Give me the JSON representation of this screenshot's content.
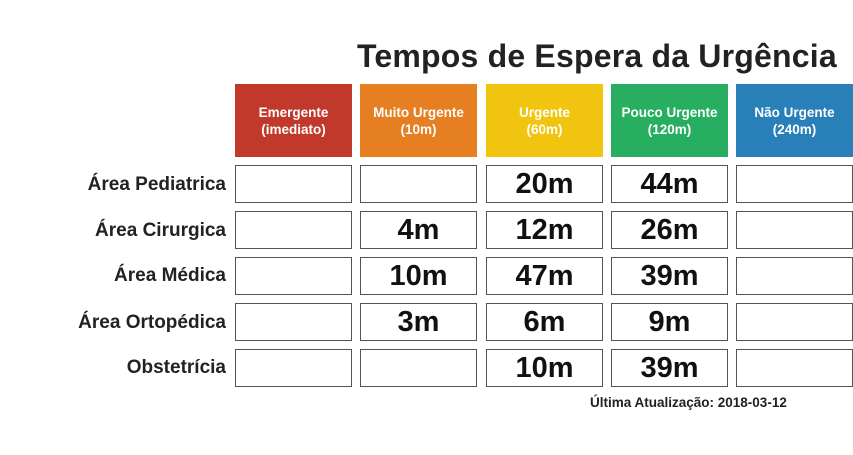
{
  "title": "Tempos de Espera da Urgência",
  "categories": [
    {
      "name": "Emergente",
      "sub": "(imediato)",
      "color": "#c0392b"
    },
    {
      "name": "Muito Urgente",
      "sub": "(10m)",
      "color": "#e67e22"
    },
    {
      "name": "Urgente",
      "sub": "(60m)",
      "color": "#f1c40f"
    },
    {
      "name": "Pouco Urgente",
      "sub": "(120m)",
      "color": "#27ae60"
    },
    {
      "name": "Não Urgente",
      "sub": "(240m)",
      "color": "#2980b9"
    }
  ],
  "rows": [
    {
      "label": "Área Pediatrica",
      "values": [
        "",
        "",
        "20m",
        "44m",
        ""
      ]
    },
    {
      "label": "Área Cirurgica",
      "values": [
        "",
        "4m",
        "12m",
        "26m",
        ""
      ]
    },
    {
      "label": "Área Médica",
      "values": [
        "",
        "10m",
        "47m",
        "39m",
        ""
      ]
    },
    {
      "label": "Área Ortopédica",
      "values": [
        "",
        "3m",
        "6m",
        "9m",
        ""
      ]
    },
    {
      "label": "Obstetrícia",
      "values": [
        "",
        "",
        "10m",
        "39m",
        ""
      ]
    }
  ],
  "last_update": "Última Atualização: 2018-03-12"
}
